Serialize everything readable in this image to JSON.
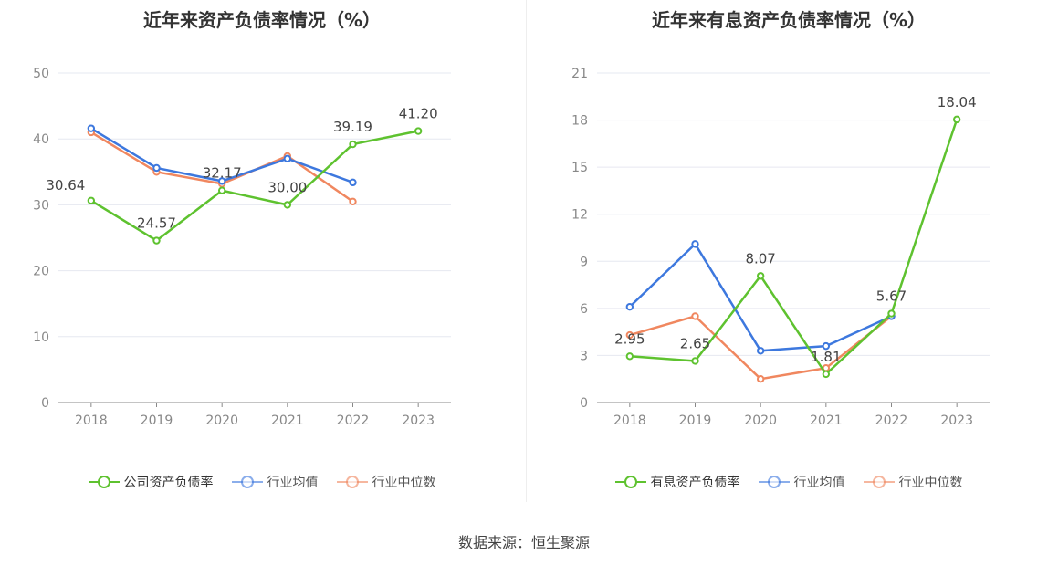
{
  "source": "数据来源：恒生聚源",
  "colors": {
    "company": "#5ec22f",
    "avg": "#3d78de",
    "median": "#f0875f"
  },
  "chart_data": [
    {
      "type": "line",
      "title": "近年来资产负债率情况（%）",
      "categories": [
        "2018",
        "2019",
        "2020",
        "2021",
        "2022",
        "2023"
      ],
      "ylim": [
        0,
        50
      ],
      "yticks": [
        0,
        10,
        20,
        30,
        40,
        50
      ],
      "grid": true,
      "legend_position": "bottom",
      "series": [
        {
          "name": "公司资产负债率",
          "key": "company",
          "values": [
            30.64,
            24.57,
            32.17,
            30.0,
            39.19,
            41.2
          ],
          "labels": [
            "30.64",
            "24.57",
            "32.17",
            "30.00",
            "39.19",
            "41.20"
          ]
        },
        {
          "name": "行业均值",
          "key": "avg",
          "values": [
            41.6,
            35.6,
            33.6,
            37.0,
            33.4,
            null
          ]
        },
        {
          "name": "行业中位数",
          "key": "median",
          "values": [
            41.0,
            35.0,
            33.2,
            37.4,
            30.5,
            null
          ]
        }
      ]
    },
    {
      "type": "line",
      "title": "近年来有息资产负债率情况（%）",
      "categories": [
        "2018",
        "2019",
        "2020",
        "2021",
        "2022",
        "2023"
      ],
      "ylim": [
        0,
        21
      ],
      "yticks": [
        0,
        3,
        6,
        9,
        12,
        15,
        18,
        21
      ],
      "grid": true,
      "legend_position": "bottom",
      "series": [
        {
          "name": "有息资产负债率",
          "key": "company",
          "values": [
            2.95,
            2.65,
            8.07,
            1.81,
            5.67,
            18.04
          ],
          "labels": [
            "2.95",
            "2.65",
            "8.07",
            "1.81",
            "5.67",
            "18.04"
          ]
        },
        {
          "name": "行业均值",
          "key": "avg",
          "values": [
            6.1,
            10.1,
            3.3,
            3.6,
            5.5,
            null
          ]
        },
        {
          "name": "行业中位数",
          "key": "median",
          "values": [
            4.3,
            5.5,
            1.5,
            2.2,
            5.5,
            null
          ]
        }
      ]
    }
  ]
}
